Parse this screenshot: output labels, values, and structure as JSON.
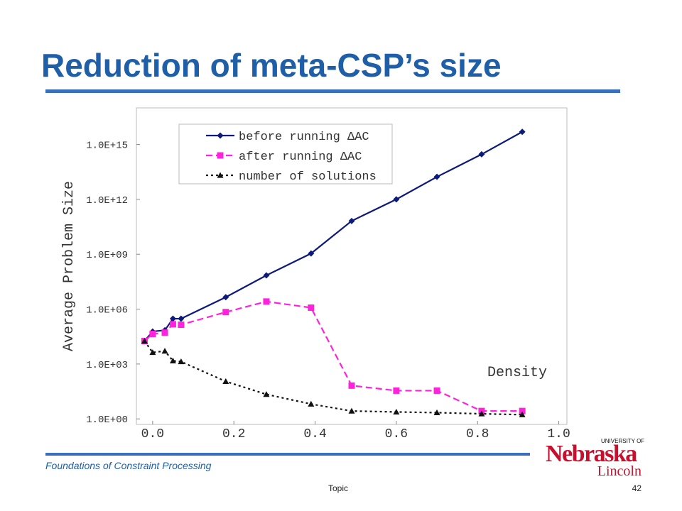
{
  "slide": {
    "title": "Reduction of meta-CSP’s size",
    "footer": "Foundations of Constraint Processing",
    "center_footer": "Topic",
    "page_number": "42",
    "logo": {
      "top": "UNIVERSITY OF",
      "name": "Nebraska",
      "bottom": "Lincoln"
    }
  },
  "chart_data": {
    "type": "line",
    "ylabel": "Average Problem Size",
    "annotation": "Density",
    "log_y": true,
    "xlim": [
      -0.04,
      1.02
    ],
    "ylim": [
      0.5,
      1e+17
    ],
    "xticks": [
      {
        "value": 0,
        "label": "0.0"
      },
      0.2,
      0.4,
      0.6,
      0.8,
      {
        "value": 1,
        "label": "1.0"
      }
    ],
    "yticks": [
      {
        "value": 1,
        "label": "1.0E+00"
      },
      {
        "value": 1000,
        "label": "1.0E+03"
      },
      {
        "value": 1000000,
        "label": "1.0E+06"
      },
      {
        "value": 1000000000,
        "label": "1.0E+09"
      },
      {
        "value": 1000000000000,
        "label": "1.0E+12"
      },
      {
        "value": 1000000000000000,
        "label": "1.0E+15"
      }
    ],
    "legend": "upper left",
    "x": [
      -0.02,
      0.0,
      0.03,
      0.05,
      0.07,
      0.18,
      0.28,
      0.39,
      0.49,
      0.6,
      0.7,
      0.81,
      0.91
    ],
    "series": [
      {
        "name": "before running ΔAC",
        "color": "#0d1a7a",
        "marker": "diamond",
        "linestyle": "solid",
        "values": [
          18000,
          60000,
          70000,
          300000,
          300000,
          4500000,
          70000000,
          1100000000,
          66000000000,
          1000000000000,
          17000000000000,
          290000000000000,
          4900000000000000
        ]
      },
      {
        "name": "after running ΔAC",
        "color": "#ff22dd",
        "marker": "square",
        "linestyle": "dashed",
        "values": [
          18000,
          44000,
          52000,
          150000,
          140000,
          690000,
          2600000,
          1200000,
          66,
          35,
          35,
          2.7,
          2.7
        ]
      },
      {
        "name": "number of solutions",
        "color": "#111111",
        "marker": "triangle",
        "linestyle": "dotted",
        "values": [
          18000,
          4300,
          5100,
          1500,
          1350,
          112,
          22,
          6.5,
          2.7,
          2.4,
          2.2,
          1.9,
          1.7
        ]
      }
    ]
  }
}
